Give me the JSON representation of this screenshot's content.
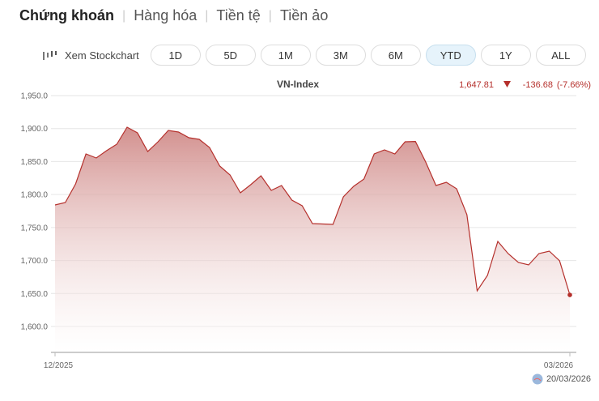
{
  "tabs": [
    {
      "label": "Chứng khoán",
      "active": true
    },
    {
      "label": "Hàng hóa"
    },
    {
      "label": "Tiền tệ"
    },
    {
      "label": "Tiền ảo"
    }
  ],
  "stockchart_label": "Xem Stockchart",
  "ranges": [
    "1D",
    "5D",
    "1M",
    "3M",
    "6M",
    "YTD",
    "1Y",
    "ALL"
  ],
  "selected_range": "YTD",
  "quote": {
    "price": "1,647.81",
    "change": "-136.68",
    "pct": "(-7.66%)",
    "color": "#b5302c"
  },
  "footer_date": "20/03/2026",
  "chart_data": {
    "type": "area",
    "title": "VN-Index",
    "ylim": [
      1560,
      1950
    ],
    "yticks": [
      "1,950.0",
      "1,900.0",
      "1,850.0",
      "1,800.0",
      "1,750.0",
      "1,700.0",
      "1,650.0",
      "1,600.0"
    ],
    "ytick_values": [
      1950,
      1900,
      1850,
      1800,
      1750,
      1700,
      1650,
      1600
    ],
    "xticks": [
      "12/2025",
      "03/2026"
    ],
    "grid": true,
    "line_color": "#b5302c",
    "fill_color": "#d08a88",
    "values": [
      1784.2,
      1787.9,
      1816.1,
      1861.6,
      1855.4,
      1866.5,
      1876.3,
      1902.1,
      1893.5,
      1865.3,
      1880.0,
      1897.2,
      1894.7,
      1886.1,
      1883.7,
      1871.4,
      1843.2,
      1829.7,
      1802.6,
      1814.9,
      1828.4,
      1806.3,
      1813.7,
      1791.6,
      1783.0,
      1756.0,
      1755.3,
      1754.7,
      1796.5,
      1812.5,
      1823.5,
      1861.6,
      1867.7,
      1861.6,
      1880.0,
      1880.5,
      1849.3,
      1813.7,
      1818.6,
      1808.8,
      1769.5,
      1654.0,
      1677.4,
      1728.9,
      1710.5,
      1697.0,
      1693.3,
      1710.5,
      1714.2,
      1699.5,
      1647.81
    ]
  }
}
